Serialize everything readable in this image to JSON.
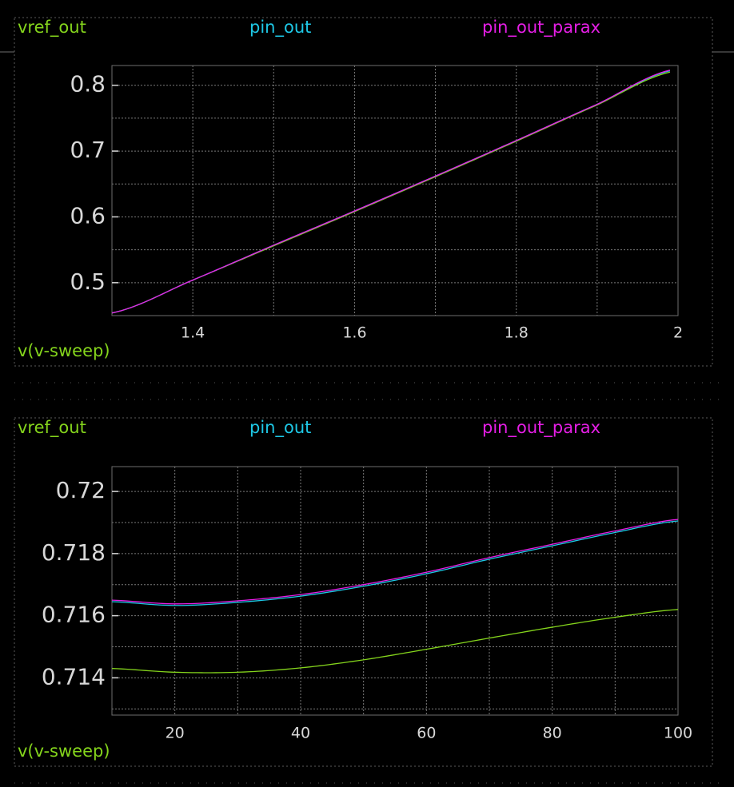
{
  "colors": {
    "background": "#000000",
    "vref_out": "#84d41c",
    "pin_out": "#1ec8e6",
    "pin_out_parax": "#e61ee6",
    "tick_text": "#d8d8d8",
    "frame": "#6e6e6e",
    "grid": "#7a7a7a"
  },
  "chart_data": [
    {
      "type": "line",
      "xlabel": "v(v-sweep)",
      "xlim": [
        1.3,
        2.0
      ],
      "ylim": [
        0.45,
        0.83
      ],
      "x_ticks": [
        1.4,
        1.6,
        1.8,
        2
      ],
      "x_tick_labels": [
        "1.4",
        "1.6",
        "1.8",
        "2"
      ],
      "y_ticks": [
        0.5,
        0.6,
        0.7,
        0.8
      ],
      "y_tick_labels": [
        "0.5",
        "0.6",
        "0.7",
        "0.8"
      ],
      "grid": true,
      "legend_placement": "top",
      "series": [
        {
          "name": "vref_out",
          "x": [
            1.3,
            1.4,
            1.5,
            1.6,
            1.7,
            1.8,
            1.9,
            1.99
          ],
          "values": [
            0.454,
            0.504,
            0.556,
            0.608,
            0.661,
            0.715,
            0.77,
            0.82
          ]
        },
        {
          "name": "pin_out",
          "x": [
            1.3,
            1.4,
            1.5,
            1.6,
            1.7,
            1.8,
            1.9,
            1.99
          ],
          "values": [
            0.454,
            0.504,
            0.557,
            0.609,
            0.662,
            0.716,
            0.771,
            0.822
          ]
        },
        {
          "name": "pin_out_parax",
          "x": [
            1.3,
            1.4,
            1.5,
            1.6,
            1.7,
            1.8,
            1.9,
            1.99
          ],
          "values": [
            0.454,
            0.504,
            0.557,
            0.609,
            0.662,
            0.716,
            0.771,
            0.823
          ]
        }
      ]
    },
    {
      "type": "line",
      "xlabel": "v(v-sweep)",
      "xlim": [
        10,
        100
      ],
      "ylim": [
        0.7128,
        0.7208
      ],
      "x_ticks": [
        20,
        40,
        60,
        80,
        100
      ],
      "x_tick_labels": [
        "20",
        "40",
        "60",
        "80",
        "100"
      ],
      "y_ticks": [
        0.714,
        0.716,
        0.718,
        0.72
      ],
      "y_tick_labels": [
        "0.714",
        "0.716",
        "0.718",
        "0.72"
      ],
      "grid": true,
      "legend_placement": "top",
      "series": [
        {
          "name": "vref_out",
          "x": [
            10,
            20,
            30,
            40,
            50,
            60,
            70,
            80,
            90,
            100
          ],
          "values": [
            0.7143,
            0.71418,
            0.71418,
            0.71432,
            0.71458,
            0.71492,
            0.71528,
            0.71563,
            0.71595,
            0.7162
          ]
        },
        {
          "name": "pin_out",
          "x": [
            10,
            20,
            30,
            40,
            50,
            60,
            70,
            80,
            90,
            100
          ],
          "values": [
            0.71645,
            0.71633,
            0.71643,
            0.71663,
            0.71695,
            0.71735,
            0.71782,
            0.71825,
            0.71868,
            0.71905
          ]
        },
        {
          "name": "pin_out_parax",
          "x": [
            10,
            20,
            30,
            40,
            50,
            60,
            70,
            80,
            90,
            100
          ],
          "values": [
            0.7165,
            0.71638,
            0.71648,
            0.71668,
            0.717,
            0.7174,
            0.71787,
            0.7183,
            0.71873,
            0.7191
          ]
        }
      ]
    }
  ]
}
